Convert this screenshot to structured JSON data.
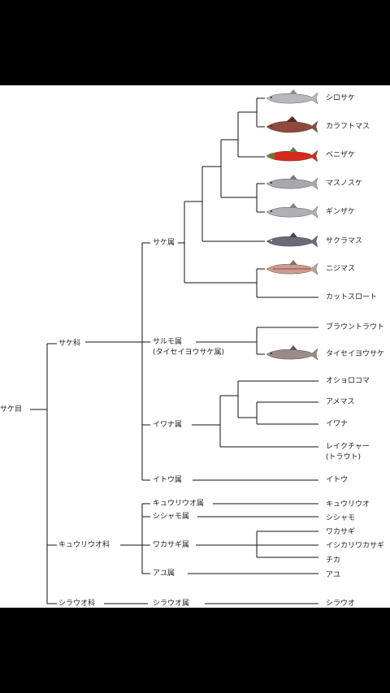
{
  "order": "サケ目",
  "families": [
    {
      "label": "サケ科"
    },
    {
      "label": "キュウリウオ科"
    },
    {
      "label": "シラウオ科"
    }
  ],
  "genera": [
    {
      "label": "サケ属"
    },
    {
      "label": "サルモ属"
    },
    {
      "label": "(タイセイヨウサケ属)"
    },
    {
      "label": "イワナ属"
    },
    {
      "label": "イトウ属"
    },
    {
      "label": "キュウリウオ属"
    },
    {
      "label": "シシャモ属"
    },
    {
      "label": "ワカサギ属"
    },
    {
      "label": "アユ属"
    },
    {
      "label": "シラウオ属"
    }
  ],
  "species": [
    {
      "label": "シロサケ"
    },
    {
      "label": "カラフトマス"
    },
    {
      "label": "ベニザケ"
    },
    {
      "label": "マスノスケ"
    },
    {
      "label": "ギンザケ"
    },
    {
      "label": "サクラマス"
    },
    {
      "label": "ニジマス"
    },
    {
      "label": "カットスロート"
    },
    {
      "label": "ブラウントラウト"
    },
    {
      "label": "タイセイヨウサケ"
    },
    {
      "label": "オショロコマ"
    },
    {
      "label": "アメマス"
    },
    {
      "label": "イワナ"
    },
    {
      "label": "レイクチャー"
    },
    {
      "label": "(トラウト)"
    },
    {
      "label": "イトウ"
    },
    {
      "label": "キュウリウオ"
    },
    {
      "label": "シシャモ"
    },
    {
      "label": "ワカサギ"
    },
    {
      "label": "イシカリワカサギ"
    },
    {
      "label": "チカ"
    },
    {
      "label": "アユ"
    },
    {
      "label": "シラウオ"
    }
  ],
  "fish_colors": [
    "#b8b8bc",
    "#8e4a3c",
    "#d42a1c",
    "#a8a8ac",
    "#b0b0b4",
    "#6a6a78",
    "#c4a090",
    "#9a8a88"
  ]
}
